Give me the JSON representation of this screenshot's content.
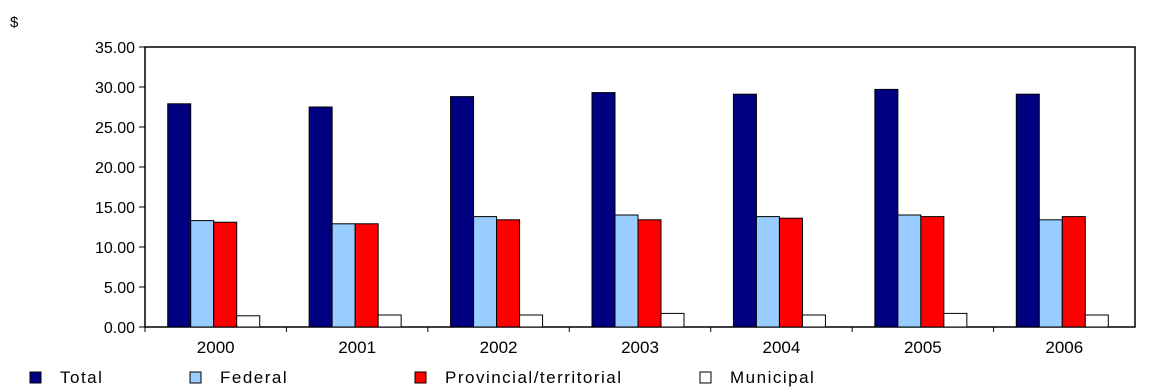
{
  "chart_data": {
    "type": "bar",
    "unit_label": "$",
    "categories": [
      "2000",
      "2001",
      "2002",
      "2003",
      "2004",
      "2005",
      "2006"
    ],
    "y_ticks": [
      "0.00",
      "5.00",
      "10.00",
      "15.00",
      "20.00",
      "25.00",
      "30.00",
      "35.00"
    ],
    "ylim": [
      0,
      35
    ],
    "grid": false,
    "legend_position": "bottom",
    "series": [
      {
        "name": "Total",
        "color": "#000080",
        "values": [
          27.9,
          27.5,
          28.8,
          29.3,
          29.1,
          29.7,
          29.1
        ]
      },
      {
        "name": "Federal",
        "color": "#99ccff",
        "values": [
          13.3,
          12.9,
          13.8,
          14.0,
          13.8,
          14.0,
          13.4
        ]
      },
      {
        "name": "Provincial/territorial",
        "color": "#ff0000",
        "values": [
          13.1,
          12.9,
          13.4,
          13.4,
          13.6,
          13.8,
          13.8
        ]
      },
      {
        "name": "Municipal",
        "color": "#ffffff",
        "values": [
          1.4,
          1.5,
          1.5,
          1.7,
          1.5,
          1.7,
          1.5
        ]
      }
    ]
  }
}
